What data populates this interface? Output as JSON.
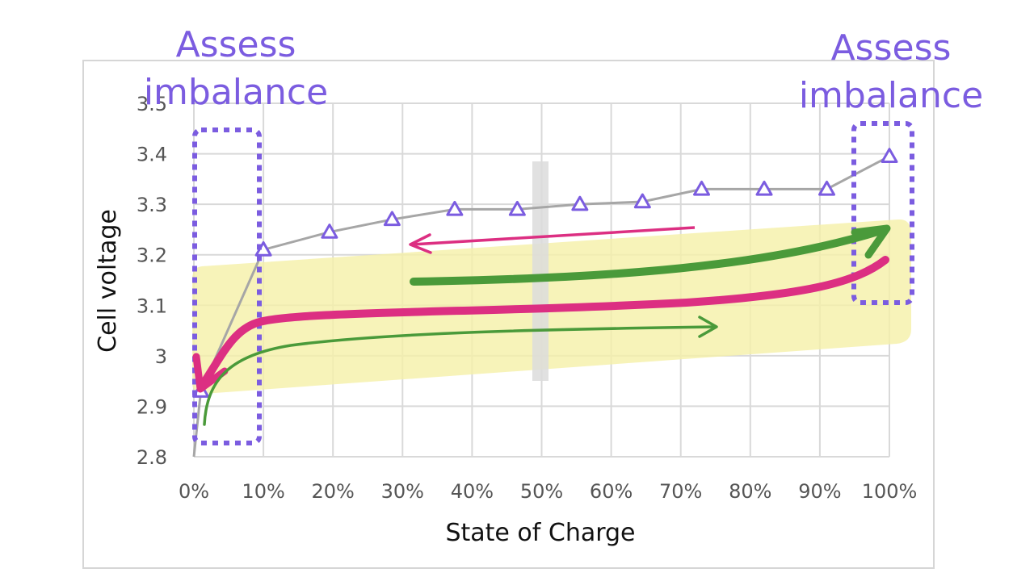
{
  "chart_data": {
    "type": "line",
    "xlabel": "State of Charge",
    "ylabel": "Cell voltage",
    "x_tick_labels": [
      "0%",
      "10%",
      "20%",
      "30%",
      "40%",
      "50%",
      "60%",
      "70%",
      "80%",
      "90%",
      "100%"
    ],
    "y_tick_labels": [
      "2.8",
      "2.9",
      "3",
      "3.1",
      "3.2",
      "3.3",
      "3.4",
      "3.5"
    ],
    "xlim": [
      0,
      100
    ],
    "ylim": [
      2.8,
      3.5
    ],
    "grid": true,
    "series": [
      {
        "color": "#a6a6a6",
        "marker": "triangle",
        "marker_color": "#7b5ce0",
        "x": [
          0,
          1,
          10,
          19.5,
          28.5,
          37.5,
          46.5,
          55.5,
          64.5,
          73,
          82,
          91,
          100
        ],
        "y": [
          2.8,
          2.93,
          3.21,
          3.245,
          3.27,
          3.29,
          3.29,
          3.3,
          3.305,
          3.33,
          3.33,
          3.33,
          3.395
        ]
      }
    ],
    "annotations": {
      "left_label": [
        "Assess",
        "imbalance"
      ],
      "right_label": [
        "Assess",
        "imbalance"
      ],
      "label_color": "#7b5ce0",
      "highlight_color": "#f5f0a8",
      "charge_arrow_color": "#4a9a3a",
      "discharge_arrow_color": "#dc2f82"
    }
  }
}
